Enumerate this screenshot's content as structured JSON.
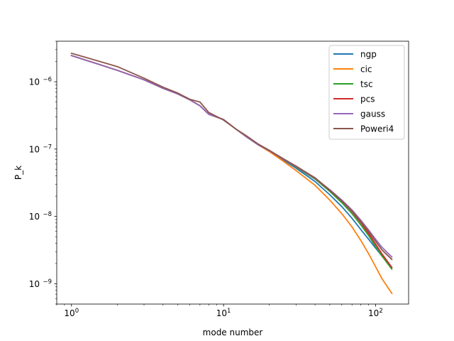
{
  "chart_data": {
    "type": "line",
    "title": "",
    "xlabel": "mode number",
    "ylabel": "P_k",
    "xscale": "log",
    "yscale": "log",
    "xlim": [
      0.8,
      165
    ],
    "ylim": [
      5e-10,
      4e-06
    ],
    "grid": false,
    "legend_placement": "top-right",
    "x_ticks": [
      {
        "value": 1,
        "base": "10",
        "exp": "0"
      },
      {
        "value": 10,
        "base": "10",
        "exp": "1"
      },
      {
        "value": 100,
        "base": "10",
        "exp": "2"
      }
    ],
    "y_ticks": [
      {
        "value": 1e-09,
        "base": "10",
        "exp": "−9"
      },
      {
        "value": 1e-08,
        "base": "10",
        "exp": "−8"
      },
      {
        "value": 1e-07,
        "base": "10",
        "exp": "−7"
      },
      {
        "value": 1e-06,
        "base": "10",
        "exp": "−6"
      }
    ],
    "series": [
      {
        "name": "ngp",
        "color": "#1f77b4",
        "x": [
          1,
          2,
          3,
          4,
          5,
          6,
          7,
          8,
          10,
          12,
          14,
          17,
          20,
          25,
          30,
          40,
          50,
          60,
          70,
          80,
          90,
          100,
          110,
          128
        ],
        "y": [
          2.45e-06,
          1.48e-06,
          1.07e-06,
          8e-07,
          6.6e-07,
          5.4e-07,
          4.4e-07,
          3.3e-07,
          2.75e-07,
          2e-07,
          1.55e-07,
          1.15e-07,
          9.4e-08,
          6.8e-08,
          5.2e-08,
          3.3e-08,
          2.1e-08,
          1.4e-08,
          9.4e-09,
          6.4e-09,
          4.6e-09,
          3.4e-09,
          2.6e-09,
          1.75e-09
        ]
      },
      {
        "name": "cic",
        "color": "#ff7f0e",
        "x": [
          1,
          2,
          3,
          4,
          5,
          6,
          7,
          8,
          10,
          12,
          14,
          17,
          20,
          25,
          30,
          40,
          50,
          60,
          70,
          80,
          90,
          100,
          110,
          128
        ],
        "y": [
          2.45e-06,
          1.48e-06,
          1.07e-06,
          8e-07,
          6.6e-07,
          5.4e-07,
          4.4e-07,
          3.3e-07,
          2.75e-07,
          2e-07,
          1.55e-07,
          1.15e-07,
          9.2e-08,
          6.5e-08,
          4.8e-08,
          2.9e-08,
          1.75e-08,
          1.1e-08,
          7e-09,
          4.4e-09,
          2.8e-09,
          1.8e-09,
          1.2e-09,
          7.2e-10
        ]
      },
      {
        "name": "tsc",
        "color": "#2ca02c",
        "x": [
          1,
          2,
          3,
          4,
          5,
          6,
          7,
          8,
          10,
          12,
          14,
          17,
          20,
          25,
          30,
          40,
          50,
          60,
          70,
          80,
          90,
          100,
          110,
          128
        ],
        "y": [
          2.45e-06,
          1.48e-06,
          1.07e-06,
          8e-07,
          6.6e-07,
          5.4e-07,
          4.4e-07,
          3.3e-07,
          2.75e-07,
          2e-07,
          1.55e-07,
          1.15e-07,
          9.5e-08,
          7e-08,
          5.4e-08,
          3.6e-08,
          2.35e-08,
          1.6e-08,
          1.1e-08,
          7.5e-09,
          5.2e-09,
          3.6e-09,
          2.6e-09,
          1.65e-09
        ]
      },
      {
        "name": "pcs",
        "color": "#d62728",
        "x": [
          1,
          2,
          3,
          4,
          5,
          6,
          7,
          8,
          10,
          12,
          14,
          17,
          20,
          25,
          30,
          40,
          50,
          60,
          70,
          80,
          90,
          100,
          110,
          128
        ],
        "y": [
          2.45e-06,
          1.48e-06,
          1.07e-06,
          8e-07,
          6.6e-07,
          5.4e-07,
          4.4e-07,
          3.3e-07,
          2.75e-07,
          2e-07,
          1.55e-07,
          1.15e-07,
          9.5e-08,
          7e-08,
          5.5e-08,
          3.7e-08,
          2.45e-08,
          1.7e-08,
          1.18e-08,
          8.1e-09,
          5.6e-09,
          3.9e-09,
          2.8e-09,
          1.75e-09
        ]
      },
      {
        "name": "gauss",
        "color": "#9467bd",
        "x": [
          1,
          2,
          3,
          4,
          5,
          6,
          7,
          8,
          10,
          12,
          14,
          17,
          20,
          25,
          30,
          40,
          50,
          60,
          70,
          80,
          90,
          100,
          110,
          128
        ],
        "y": [
          2.45e-06,
          1.48e-06,
          1.07e-06,
          8e-07,
          6.6e-07,
          5.4e-07,
          4.4e-07,
          3.3e-07,
          2.75e-07,
          2e-07,
          1.55e-07,
          1.15e-07,
          9.5e-08,
          7e-08,
          5.5e-08,
          3.7e-08,
          2.5e-08,
          1.75e-08,
          1.25e-08,
          8.8e-09,
          6.3e-09,
          4.6e-09,
          3.5e-09,
          2.5e-09
        ]
      },
      {
        "name": "Poweri4",
        "color": "#8c564b",
        "x": [
          1,
          2,
          3,
          4,
          5,
          6,
          7,
          8,
          10,
          12,
          14,
          17,
          20,
          25,
          30,
          40,
          50,
          60,
          70,
          80,
          90,
          100,
          110,
          128
        ],
        "y": [
          2.65e-06,
          1.68e-06,
          1.13e-06,
          8.3e-07,
          6.8e-07,
          5.5e-07,
          5e-07,
          3.5e-07,
          2.7e-07,
          2e-07,
          1.6e-07,
          1.18e-07,
          9.6e-08,
          7.1e-08,
          5.6e-08,
          3.75e-08,
          2.45e-08,
          1.7e-08,
          1.2e-08,
          8.4e-09,
          6e-09,
          4.3e-09,
          3.2e-09,
          2.3e-09
        ]
      }
    ]
  }
}
